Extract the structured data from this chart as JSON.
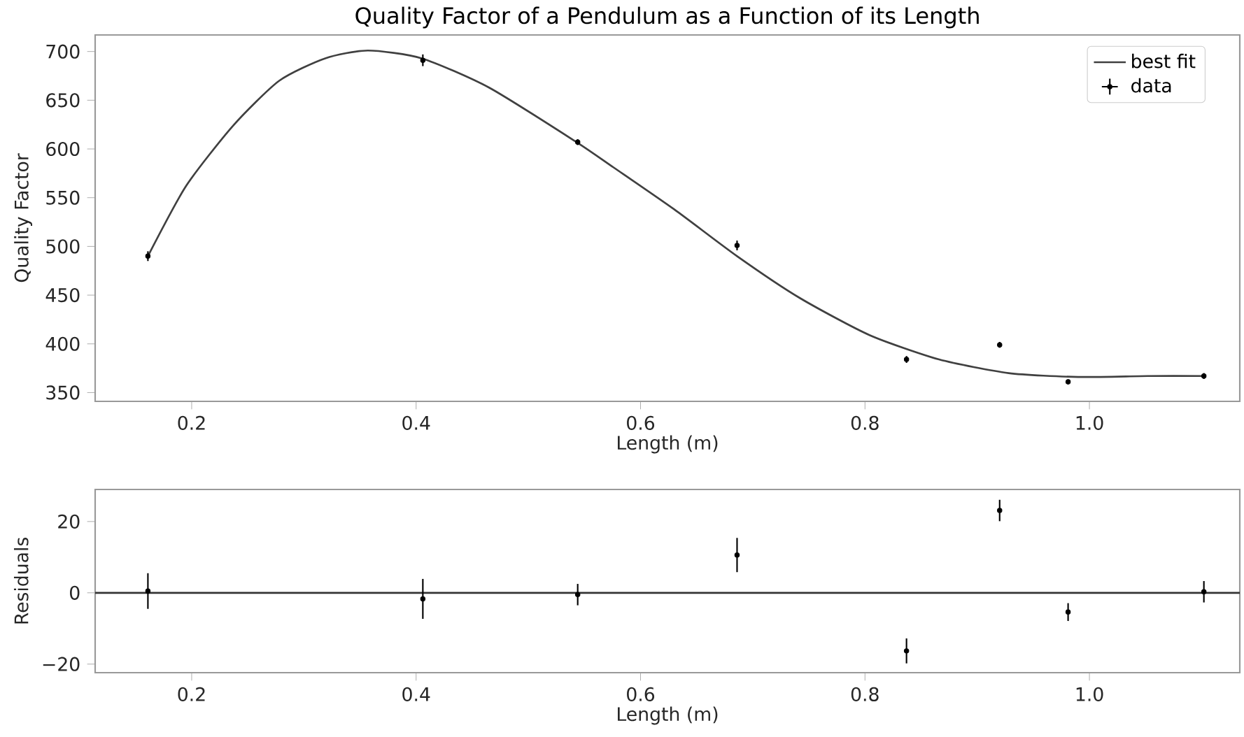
{
  "chart_data": [
    {
      "type": "line",
      "title": "Quality Factor of a Pendulum as a Function of its Length",
      "xlabel": "Length (m)",
      "ylabel": "Quality Factor",
      "xlim": [
        0.114,
        1.134
      ],
      "ylim": [
        341,
        717
      ],
      "xticks": [
        {
          "value": 0.2,
          "label": "0.2"
        },
        {
          "value": 0.4,
          "label": "0.4"
        },
        {
          "value": 0.6,
          "label": "0.6"
        },
        {
          "value": 0.8,
          "label": "0.8"
        },
        {
          "value": 1.0,
          "label": "1.0"
        }
      ],
      "yticks": [
        350,
        400,
        450,
        500,
        550,
        600,
        650,
        700
      ],
      "legend": "top right",
      "series": [
        {
          "name": "best fit",
          "type": "line",
          "color": "#404040",
          "x": [
            0.161,
            0.195,
            0.237,
            0.278,
            0.319,
            0.357,
            0.405,
            0.465,
            0.543,
            0.576,
            0.63,
            0.686,
            0.742,
            0.804,
            0.866,
            0.928,
            0.99,
            1.052,
            1.102
          ],
          "values": [
            490,
            562,
            624,
            670,
            693,
            701,
            693,
            663,
            607,
            581,
            538,
            490,
            447,
            409,
            384,
            370,
            366,
            367,
            367
          ]
        },
        {
          "name": "data",
          "type": "scatter",
          "marker": "circle",
          "color": "#000000",
          "x": [
            0.161,
            0.406,
            0.544,
            0.686,
            0.837,
            0.92,
            0.981,
            1.102
          ],
          "values": [
            490,
            691,
            607,
            501,
            384,
            399,
            361,
            367
          ],
          "errors": [
            5,
            6,
            3,
            5,
            3.5,
            3,
            2.5,
            3
          ]
        }
      ]
    },
    {
      "type": "scatter",
      "xlabel": "Length (m)",
      "ylabel": "Residuals",
      "xlim": [
        0.114,
        1.134
      ],
      "ylim": [
        -22.4,
        29
      ],
      "xticks": [
        {
          "value": 0.2,
          "label": "0.2"
        },
        {
          "value": 0.4,
          "label": "0.4"
        },
        {
          "value": 0.6,
          "label": "0.6"
        },
        {
          "value": 0.8,
          "label": "0.8"
        },
        {
          "value": 1.0,
          "label": "1.0"
        }
      ],
      "yticks": [
        {
          "value": -20,
          "label": "−20"
        },
        0,
        20
      ],
      "ref_lines": [
        {
          "axis": "y",
          "value": 0,
          "color": "#333333"
        }
      ],
      "series": [
        {
          "color": "#000000",
          "marker": "circle",
          "x": [
            0.161,
            0.406,
            0.544,
            0.686,
            0.837,
            0.92,
            0.981,
            1.102
          ],
          "values": [
            0.5,
            -1.7,
            -0.5,
            10.6,
            -16.3,
            23.1,
            -5.4,
            0.3
          ],
          "errors": [
            5,
            5.6,
            3,
            4.8,
            3.5,
            3,
            2.5,
            3
          ]
        }
      ]
    }
  ]
}
